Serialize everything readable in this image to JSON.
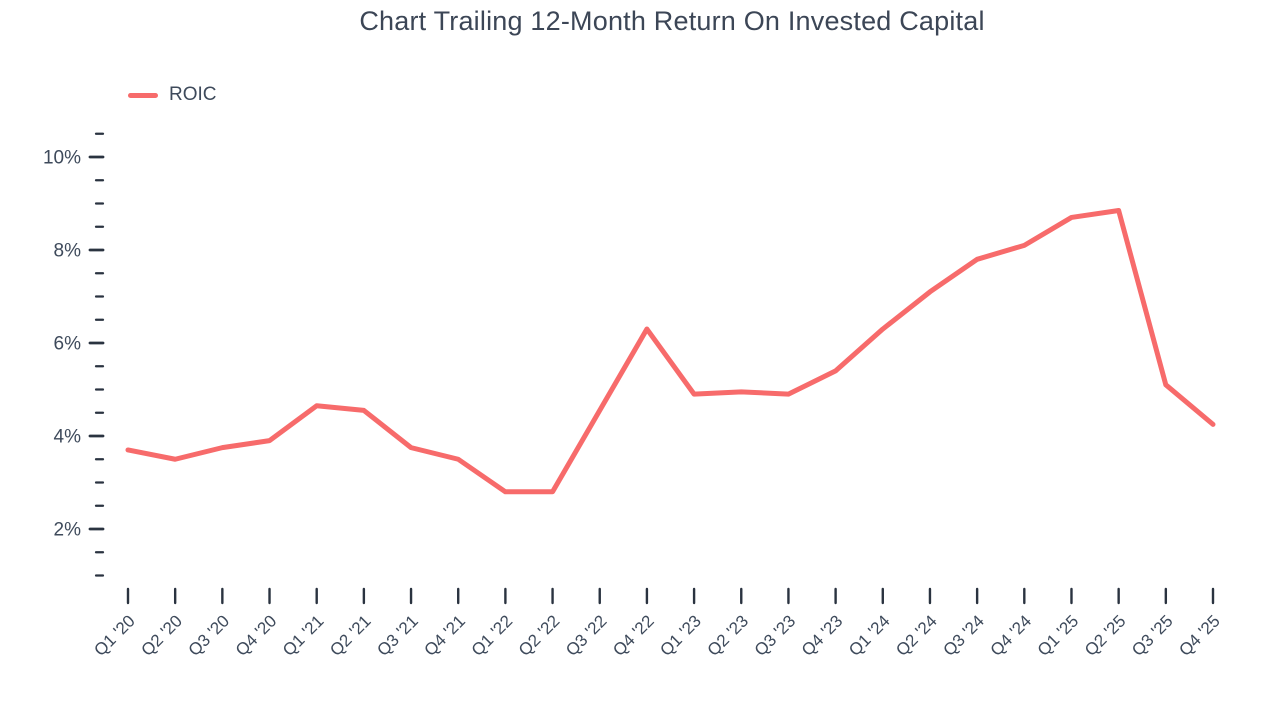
{
  "title": "Chart Trailing 12-Month Return On Invested Capital",
  "legend": {
    "items": [
      {
        "label": "ROIC",
        "color": "#F76B6B"
      }
    ]
  },
  "colors": {
    "line": "#F76B6B",
    "text": "#3E4A5B",
    "title_text": "#3C4656",
    "tick": "#2A3340",
    "background": "#FFFFFF"
  },
  "chart_data": {
    "type": "line",
    "title": "Chart Trailing 12-Month Return On Invested Capital",
    "xlabel": "",
    "ylabel": "",
    "grid": false,
    "legend_position": "top-left",
    "categories": [
      "Q1 '20",
      "Q2 '20",
      "Q3 '20",
      "Q4 '20",
      "Q1 '21",
      "Q2 '21",
      "Q3 '21",
      "Q4 '21",
      "Q1 '22",
      "Q2 '22",
      "Q3 '22",
      "Q4 '22",
      "Q1 '23",
      "Q2 '23",
      "Q3 '23",
      "Q4 '23",
      "Q1 '24",
      "Q2 '24",
      "Q3 '24",
      "Q4 '24",
      "Q1 '25",
      "Q2 '25",
      "Q3 '25",
      "Q4 '25"
    ],
    "series": [
      {
        "name": "ROIC",
        "color": "#F76B6B",
        "unit": "%",
        "values": [
          3.7,
          3.5,
          3.75,
          3.9,
          4.65,
          4.55,
          3.75,
          3.5,
          2.8,
          2.8,
          4.55,
          6.3,
          4.9,
          4.95,
          4.9,
          5.4,
          6.3,
          7.1,
          7.8,
          8.1,
          8.7,
          8.85,
          5.1,
          4.25
        ]
      }
    ],
    "y_axis": {
      "min_tick": 1.0,
      "max_tick": 10.5,
      "minor_step": 0.5,
      "major_ticks": [
        2,
        4,
        6,
        8,
        10
      ],
      "major_tick_labels": [
        "2%",
        "4%",
        "6%",
        "8%",
        "10%"
      ],
      "format": "percent"
    },
    "ylim": [
      0.5,
      11
    ],
    "x_axis": {
      "tick_every": 1,
      "label_rotation": -45
    }
  }
}
